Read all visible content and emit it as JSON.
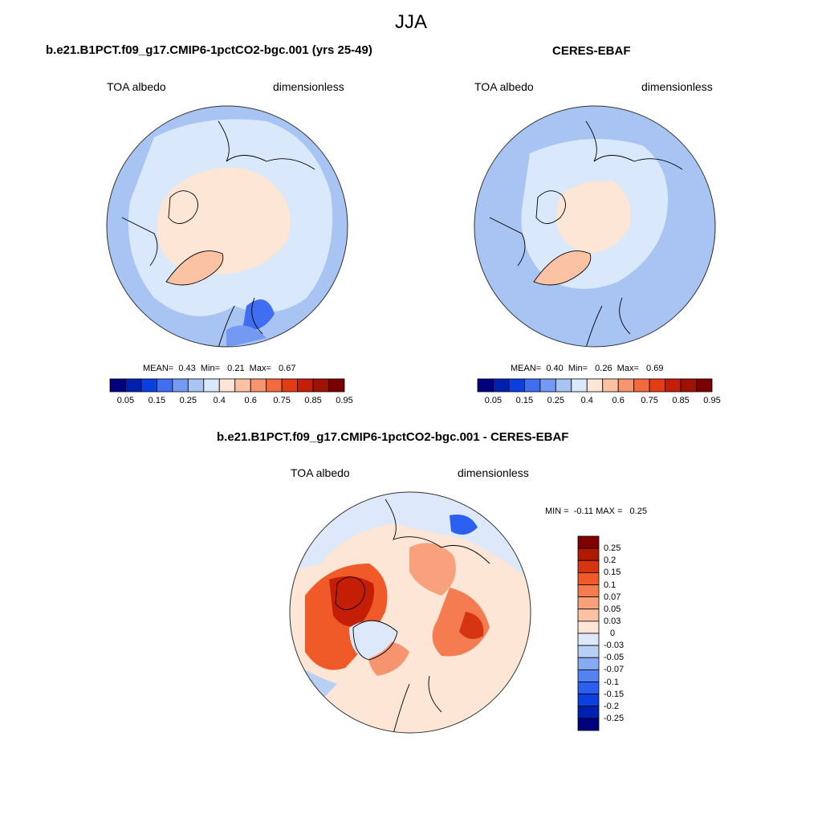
{
  "figure": {
    "season": "JJA",
    "panels": [
      {
        "title": "b.e21.B1PCT.f09_g17.CMIP6-1pctCO2-bgc.001 (yrs 25-49)",
        "variable": "TOA albedo",
        "units": "dimensionless",
        "stats": "MEAN=  0.43  Min=   0.21  Max=   0.67"
      },
      {
        "title": "CERES-EBAF",
        "variable": "TOA albedo",
        "units": "dimensionless",
        "stats": "MEAN=  0.40  Min=   0.26  Max=   0.69"
      },
      {
        "title": "b.e21.B1PCT.f09_g17.CMIP6-1pctCO2-bgc.001 - CERES-EBAF",
        "variable": "TOA albedo",
        "units": "dimensionless",
        "stats": "MIN =  -0.11 MAX =   0.25"
      }
    ]
  },
  "colorbar_abs": {
    "colors": [
      "#00007f",
      "#0020b0",
      "#0a3fe0",
      "#3f6ff0",
      "#7399f2",
      "#a8c4f2",
      "#d9e8fb",
      "#fde6d5",
      "#fbc2a4",
      "#f79470",
      "#f26a3e",
      "#e33c14",
      "#c41f06",
      "#a01200",
      "#7a0000"
    ],
    "labels": [
      "0.05",
      "0.15",
      "0.25",
      "0.4",
      "0.6",
      "0.75",
      "0.85",
      "0.95"
    ]
  },
  "colorbar_diff": {
    "colors": [
      "#00007f",
      "#0020b0",
      "#0a3fe0",
      "#2a5ff0",
      "#5582f2",
      "#88aaf2",
      "#b9d0f5",
      "#dde9fb",
      "#fde6d5",
      "#fbc3a4",
      "#f9a07c",
      "#f47c50",
      "#ef5a28",
      "#d53510",
      "#b01a02",
      "#800000"
    ],
    "labels": [
      "0.25",
      "0.2",
      "0.15",
      "0.1",
      "0.07",
      "0.05",
      "0.03",
      "0",
      "-0.03",
      "-0.05",
      "-0.07",
      "-0.1",
      "-0.15",
      "-0.2",
      "-0.25"
    ]
  }
}
